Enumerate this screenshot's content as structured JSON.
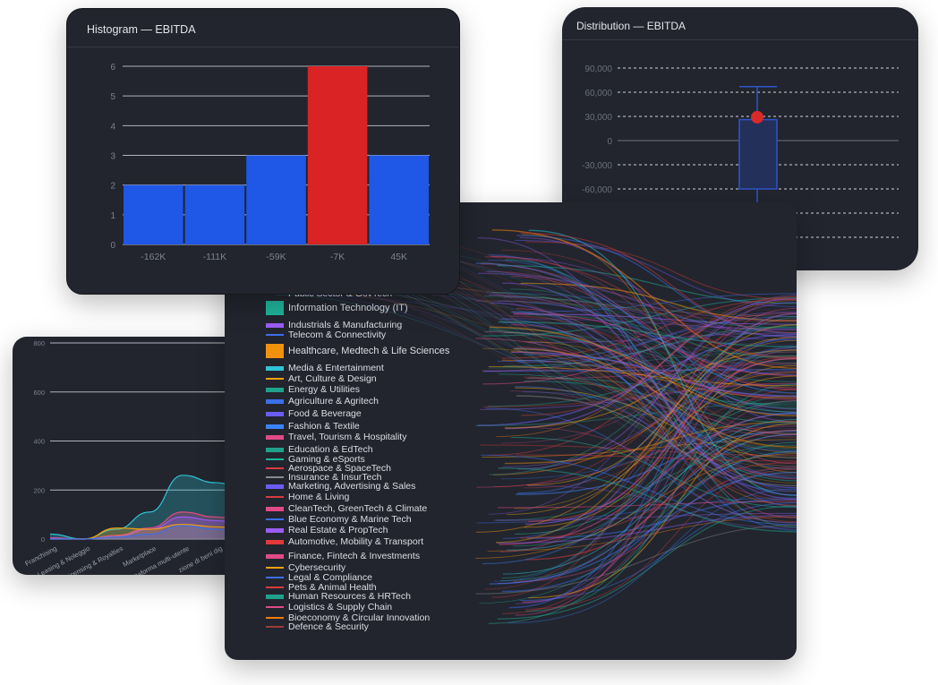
{
  "histogram": {
    "title": "Histogram — EBITDA",
    "chart_data": {
      "type": "bar",
      "categories": [
        "-162K",
        "-111K",
        "-59K",
        "-7K",
        "45K"
      ],
      "values": [
        2,
        2,
        3,
        6,
        3
      ],
      "highlight_index": 3,
      "yticks": [
        "0",
        "1",
        "2",
        "3",
        "4",
        "5",
        "6"
      ],
      "ylim": [
        0,
        6
      ],
      "colors": {
        "bar": "#1f57e6",
        "highlight": "#d92324"
      }
    }
  },
  "distribution": {
    "title": "Distribution — EBITDA",
    "chart_data": {
      "type": "box",
      "yticks": [
        "90,000",
        "60,000",
        "30,000",
        "0",
        "-30,000",
        "-60,000"
      ],
      "ytick_values": [
        90000,
        60000,
        30000,
        0,
        -30000,
        -60000
      ],
      "whisker_high": 67000,
      "q3": 26000,
      "q1": -60000,
      "marker": 29000,
      "colors": {
        "box": "#2f55c8",
        "marker": "#d92a2a"
      }
    }
  },
  "area_chart": {
    "chart_data": {
      "type": "area",
      "yticks": [
        "800",
        "600",
        "400",
        "200",
        "0"
      ],
      "ytick_values": [
        800,
        600,
        400,
        200,
        0
      ],
      "ylim": [
        0,
        800
      ],
      "categories": [
        "Franchising",
        "Leasing & Noleggio",
        "Licensing & Royalties",
        "Marketplace",
        "Piattaforma multi-utente",
        "Vendita di beni digitali",
        "Produzione"
      ],
      "category_labels": [
        "Franchising",
        "Leasing & Noleggio",
        "icensing & Royalties",
        "Marketplace",
        "iattaforma multi-utente",
        "zione di beni dig",
        "duzio"
      ],
      "series": [
        {
          "color": "#2ec4d6",
          "values": [
            20,
            0,
            40,
            110,
            260,
            230,
            200
          ]
        },
        {
          "color": "#e04a86",
          "values": [
            5,
            0,
            15,
            45,
            110,
            90,
            70
          ]
        },
        {
          "color": "#9a5cf5",
          "values": [
            3,
            0,
            10,
            40,
            90,
            75,
            60
          ]
        },
        {
          "color": "#f0a20e",
          "values": [
            0,
            0,
            45,
            40,
            60,
            50,
            40
          ]
        },
        {
          "color": "#3b6fe8",
          "values": [
            0,
            0,
            8,
            20,
            55,
            40,
            30
          ]
        }
      ]
    }
  },
  "sankey": {
    "items": [
      {
        "label": "Public Sector & GovTech",
        "color": "#2aa58c",
        "size": "line"
      },
      {
        "label": "Information Technology (IT)",
        "color": "#1fb39a",
        "size": "big"
      },
      {
        "label": "Industrials & Manufacturing",
        "color": "#9a5cf5",
        "size": "small"
      },
      {
        "label": "Telecom & Connectivity",
        "color": "#3b6fe8",
        "size": "line"
      },
      {
        "label": "Healthcare, Medtech & Life Sciences",
        "color": "#f0920e",
        "size": "big"
      },
      {
        "label": "Media & Entertainment",
        "color": "#2ec4d6",
        "size": "small"
      },
      {
        "label": "Art, Culture & Design",
        "color": "#f0a20e",
        "size": "line"
      },
      {
        "label": "Energy & Utilities",
        "color": "#1fa28c",
        "size": "small"
      },
      {
        "label": "Agriculture & Agritech",
        "color": "#3b6fe8",
        "size": "small"
      },
      {
        "label": "Food & Beverage",
        "color": "#6b5cf5",
        "size": "small"
      },
      {
        "label": "Fashion & Textile",
        "color": "#3b82f6",
        "size": "small"
      },
      {
        "label": "Travel, Tourism & Hospitality",
        "color": "#e04a86",
        "size": "small"
      },
      {
        "label": "Education & EdTech",
        "color": "#1fa28c",
        "size": "small"
      },
      {
        "label": "Gaming & eSports",
        "color": "#1fb39a",
        "size": "line"
      },
      {
        "label": "Aerospace & SpaceTech",
        "color": "#d93b3b",
        "size": "line"
      },
      {
        "label": "Insurance & InsurTech",
        "color": "#8a8a8a",
        "size": "line"
      },
      {
        "label": "Marketing, Advertising & Sales",
        "color": "#6b5cf5",
        "size": "small"
      },
      {
        "label": "Home & Living",
        "color": "#d93b3b",
        "size": "line"
      },
      {
        "label": "CleanTech, GreenTech & Climate",
        "color": "#e04a86",
        "size": "small"
      },
      {
        "label": "Blue Economy & Marine Tech",
        "color": "#3b6fe8",
        "size": "line"
      },
      {
        "label": "Real Estate & PropTech",
        "color": "#9a5cf5",
        "size": "small"
      },
      {
        "label": "Automotive, Mobility & Transport",
        "color": "#e03a3a",
        "size": "small"
      },
      {
        "label": "Finance, Fintech & Investments",
        "color": "#e04a86",
        "size": "small"
      },
      {
        "label": "Cybersecurity",
        "color": "#f0a20e",
        "size": "line"
      },
      {
        "label": "Legal & Compliance",
        "color": "#3b6fe8",
        "size": "line"
      },
      {
        "label": "Pets & Animal Health",
        "color": "#d93b3b",
        "size": "line"
      },
      {
        "label": "Human Resources & HRTech",
        "color": "#1fa28c",
        "size": "small"
      },
      {
        "label": "Logistics & Supply Chain",
        "color": "#e04a86",
        "size": "line"
      },
      {
        "label": "Bioeconomy & Circular Innovation",
        "color": "#f07a0e",
        "size": "line"
      },
      {
        "label": "Defence & Security",
        "color": "#9a3b3b",
        "size": "line"
      }
    ]
  }
}
